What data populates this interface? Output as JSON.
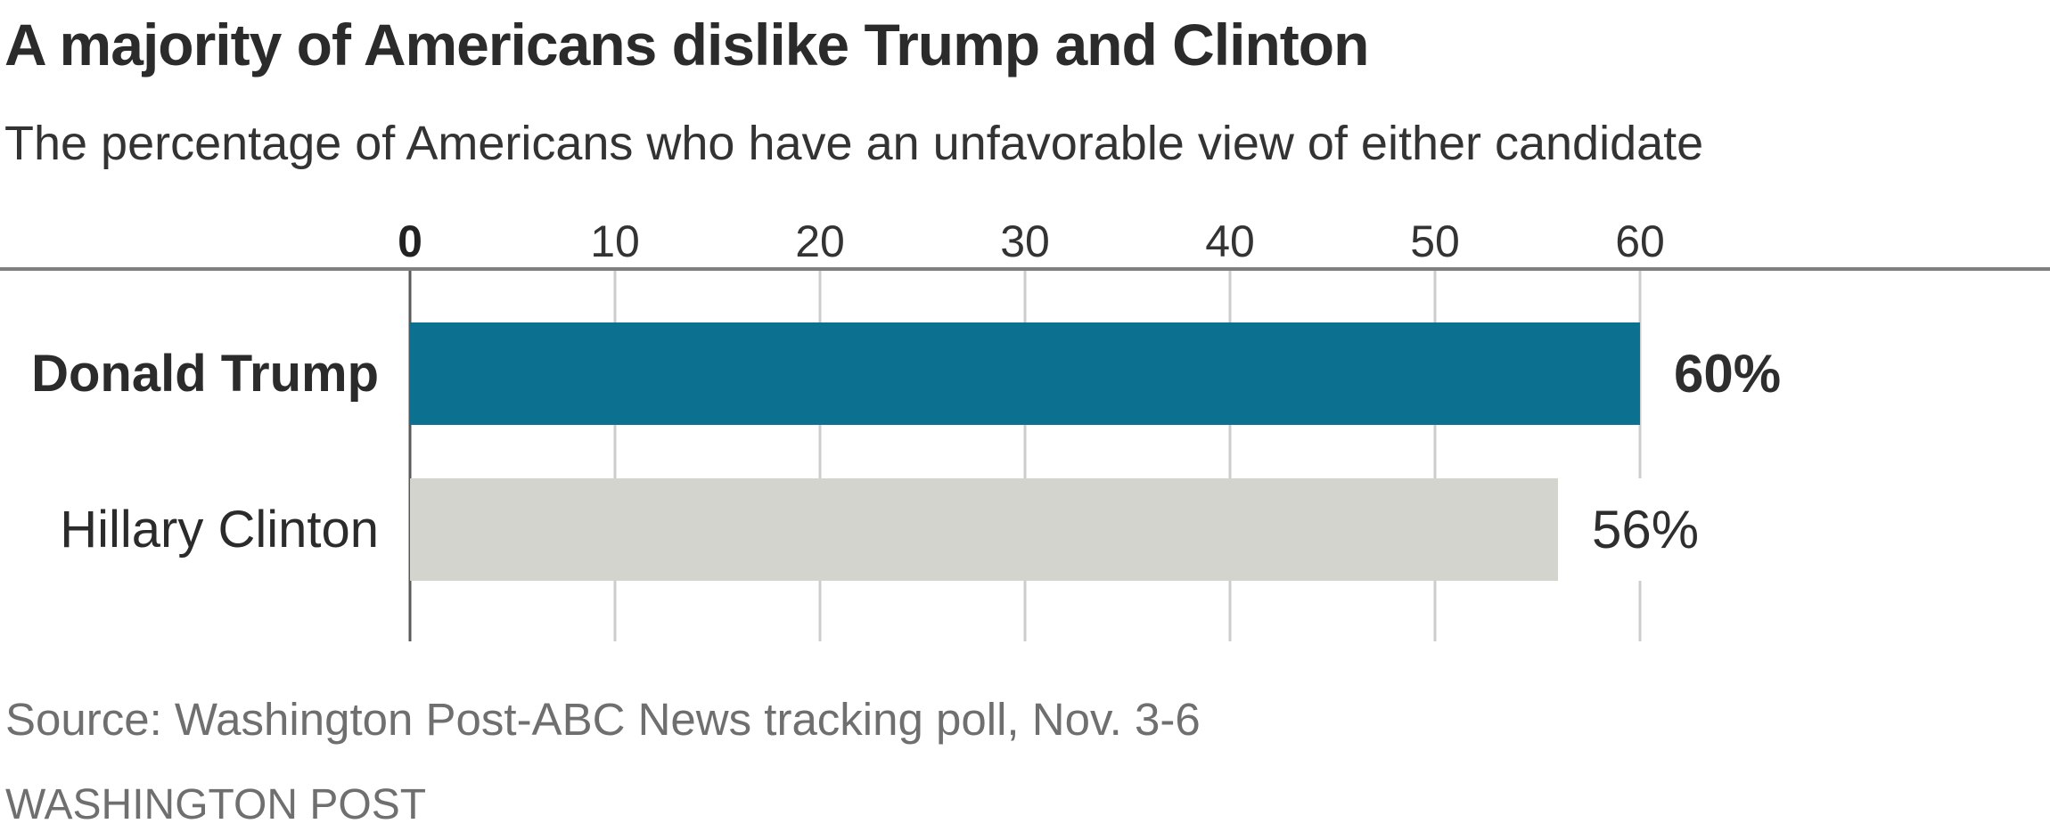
{
  "chart_data": {
    "type": "bar",
    "orientation": "horizontal",
    "title": "A majority of Americans dislike Trump and Clinton",
    "subtitle": "The percentage of Americans who have an unfavorable view of either candidate",
    "categories": [
      "Donald Trump",
      "Hillary Clinton"
    ],
    "values": [
      60,
      56
    ],
    "value_labels": [
      "60%",
      "56%"
    ],
    "xticks": [
      0,
      10,
      20,
      30,
      40,
      50,
      60
    ],
    "xlim": [
      0,
      60
    ],
    "grid": true,
    "legend_position": "none",
    "bar_colors": [
      "#0c7191",
      "#d3d4ce"
    ],
    "source": "Source: Washington Post-ABC News tracking poll, Nov. 3-6",
    "credit": "WASHINGTON POST"
  },
  "colors": {
    "bar_trump": "#0c7191",
    "bar_clinton": "#d3d4ce",
    "gridline": "#cdcdcd",
    "zero_axis": "#58585a",
    "top_rule": "#7f7f7f",
    "text_dark": "#2b2b2b",
    "text_muted": "#6f6f6f"
  }
}
